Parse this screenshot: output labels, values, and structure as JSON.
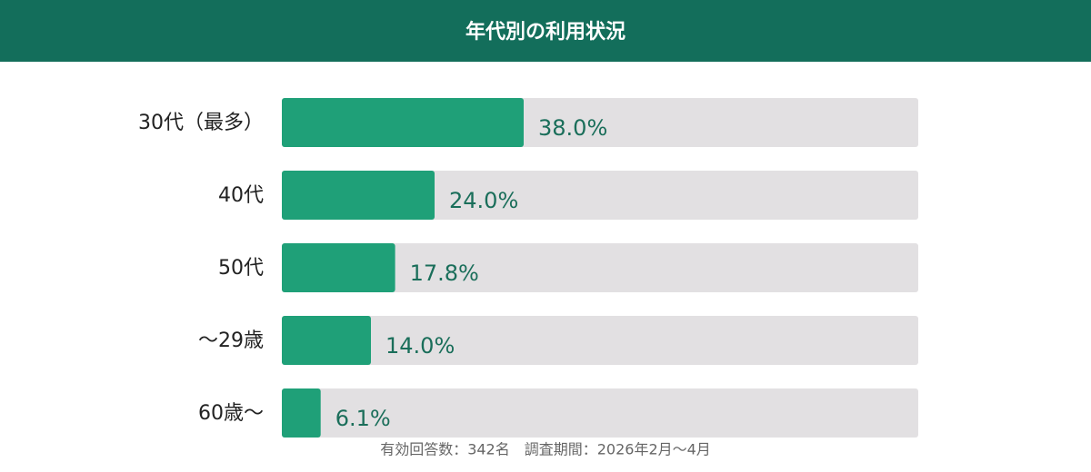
{
  "chart_data": {
    "type": "bar",
    "orientation": "horizontal",
    "title": "年代別の利用状況",
    "categories": [
      "30代（最多）",
      "40代",
      "50代",
      "〜29歳",
      "60歳〜"
    ],
    "values": [
      38.0,
      24.0,
      17.8,
      14.0,
      6.1
    ],
    "value_labels": [
      "38.0%",
      "24.0%",
      "17.8%",
      "14.0%",
      "6.1%"
    ],
    "color": "#1fa078",
    "xlim": [
      0,
      100
    ],
    "footnote": "有効回答数：342名　調査期間：2026年2月〜4月"
  }
}
